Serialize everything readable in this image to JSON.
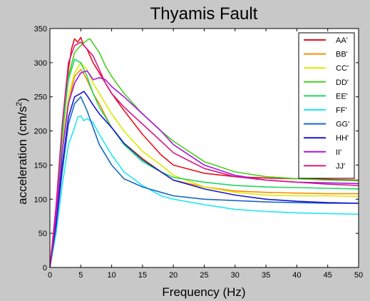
{
  "chart_data": {
    "type": "line",
    "title": "Thyamis Fault",
    "xlabel": "Frequency (Hz)",
    "ylabel": "acceleration (cm/s",
    "ylabel_sup": "2",
    "ylabel_tail": ")",
    "xlim": [
      0,
      50
    ],
    "ylim": [
      0,
      350
    ],
    "xticks": [
      0,
      5,
      10,
      15,
      20,
      25,
      30,
      35,
      40,
      45,
      50
    ],
    "yticks": [
      0,
      50,
      100,
      150,
      200,
      250,
      300,
      350
    ],
    "grid": false,
    "legend_position": "top-right",
    "series": [
      {
        "name": "AA'",
        "color": "#e8101a",
        "x": [
          0,
          1,
          2,
          3,
          3.5,
          4,
          4.5,
          5,
          5.5,
          6,
          7,
          8,
          9,
          10,
          12,
          15,
          18,
          20,
          25,
          30,
          35,
          40,
          45,
          50
        ],
        "y": [
          0,
          90,
          200,
          290,
          320,
          335,
          330,
          337,
          325,
          320,
          300,
          285,
          270,
          255,
          230,
          195,
          165,
          150,
          138,
          133,
          131,
          130,
          129,
          128
        ]
      },
      {
        "name": "BB'",
        "color": "#ff8c00",
        "x": [
          0,
          1,
          2,
          3,
          4,
          5,
          5.5,
          6,
          7,
          8,
          9,
          10,
          12,
          15,
          18,
          20,
          25,
          30,
          35,
          40,
          45,
          50
        ],
        "y": [
          0,
          70,
          170,
          240,
          280,
          290,
          283,
          275,
          255,
          240,
          222,
          205,
          182,
          160,
          140,
          128,
          118,
          112,
          110,
          109,
          108,
          108
        ]
      },
      {
        "name": "CC'",
        "color": "#dcea00",
        "x": [
          0,
          1,
          2,
          3,
          4,
          5,
          6,
          7,
          8,
          9,
          10,
          12,
          15,
          18,
          20,
          25,
          30,
          35,
          40,
          45,
          50
        ],
        "y": [
          0,
          80,
          180,
          250,
          285,
          300,
          290,
          270,
          255,
          240,
          225,
          200,
          170,
          150,
          135,
          118,
          110,
          106,
          105,
          105,
          104
        ]
      },
      {
        "name": "DD'",
        "color": "#4ad01e",
        "x": [
          0,
          1,
          2,
          3,
          4,
          5,
          6,
          6.5,
          7,
          8,
          9,
          10,
          12,
          15,
          18,
          20,
          25,
          30,
          35,
          40,
          45,
          50
        ],
        "y": [
          0,
          80,
          190,
          280,
          315,
          325,
          333,
          335,
          328,
          315,
          295,
          280,
          255,
          225,
          200,
          185,
          155,
          140,
          133,
          130,
          128,
          127
        ]
      },
      {
        "name": "EE'",
        "color": "#1fd860",
        "x": [
          0,
          1,
          2,
          3,
          4,
          5,
          6,
          7,
          8,
          9,
          10,
          12,
          15,
          18,
          20,
          25,
          30,
          35,
          40,
          45,
          50
        ],
        "y": [
          0,
          85,
          200,
          275,
          305,
          300,
          280,
          255,
          235,
          220,
          205,
          180,
          155,
          140,
          132,
          125,
          120,
          118,
          117,
          116,
          115
        ]
      },
      {
        "name": "FF'",
        "color": "#20e8f0",
        "x": [
          0,
          1,
          2,
          3,
          4,
          4.5,
          5,
          5.5,
          6,
          7,
          8,
          10,
          12,
          15,
          18,
          20,
          25,
          30,
          35,
          40,
          45,
          50
        ],
        "y": [
          0,
          50,
          120,
          180,
          205,
          220,
          222,
          215,
          218,
          212,
          195,
          165,
          140,
          120,
          105,
          100,
          92,
          85,
          82,
          80,
          79,
          78
        ]
      },
      {
        "name": "GG'",
        "color": "#1868c8",
        "x": [
          0,
          1,
          2,
          3,
          4,
          5,
          6,
          7,
          8,
          10,
          12,
          15,
          18,
          20,
          25,
          30,
          35,
          40,
          45,
          50
        ],
        "y": [
          0,
          60,
          140,
          210,
          240,
          250,
          230,
          205,
          180,
          150,
          130,
          118,
          110,
          105,
          100,
          98,
          96,
          95,
          94,
          94
        ]
      },
      {
        "name": "HH'",
        "color": "#1a14d0",
        "x": [
          0,
          1,
          2,
          3,
          4,
          5,
          5.5,
          6,
          7,
          8,
          10,
          12,
          15,
          18,
          20,
          25,
          30,
          35,
          40,
          45,
          50
        ],
        "y": [
          0,
          65,
          150,
          220,
          250,
          255,
          258,
          252,
          238,
          225,
          205,
          182,
          158,
          140,
          128,
          115,
          106,
          100,
          97,
          95,
          94
        ]
      },
      {
        "name": "II'",
        "color": "#a818e0",
        "x": [
          0,
          1,
          2,
          3,
          4,
          5,
          6,
          6.5,
          7,
          8,
          9,
          10,
          12,
          15,
          18,
          20,
          25,
          30,
          35,
          40,
          45,
          50
        ],
        "y": [
          0,
          75,
          170,
          240,
          270,
          285,
          288,
          282,
          275,
          278,
          275,
          265,
          250,
          225,
          200,
          180,
          150,
          135,
          128,
          125,
          124,
          123
        ]
      },
      {
        "name": "JJ'",
        "color": "#d81888",
        "x": [
          0,
          1,
          2,
          3,
          4,
          5,
          6,
          7,
          8,
          9,
          10,
          12,
          15,
          18,
          20,
          25,
          30,
          35,
          40,
          45,
          50
        ],
        "y": [
          0,
          90,
          210,
          300,
          325,
          330,
          320,
          310,
          290,
          270,
          255,
          235,
          210,
          185,
          168,
          145,
          133,
          128,
          125,
          122,
          120
        ]
      }
    ]
  }
}
